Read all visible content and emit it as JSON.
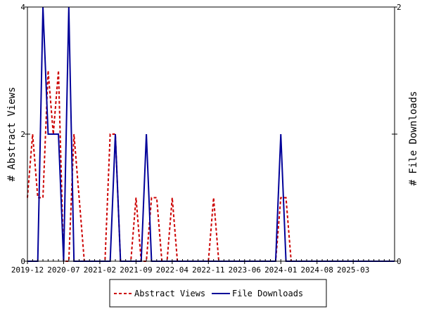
{
  "chart_data": {
    "type": "line",
    "ylabel_left": "# Abstract Views",
    "ylabel_right": "# File Downloads",
    "xlabel": "",
    "x_tick_labels": [
      "2019-12",
      "2020-07",
      "2021-02",
      "2021-09",
      "2022-04",
      "2022-11",
      "2023-06",
      "2024-01",
      "2024-08",
      "2025-03"
    ],
    "x_range": [
      "2019-12",
      "2025-11"
    ],
    "y_left_ticks": [
      "0",
      "2",
      "4"
    ],
    "y_left_range": [
      0,
      4
    ],
    "y_right_ticks": [
      "0",
      "1",
      "2"
    ],
    "y_right_range": [
      0,
      2
    ],
    "grid": false,
    "legend_position": "bottom",
    "months_count": 72,
    "series": [
      {
        "name": "Abstract Views",
        "axis": "left",
        "color": "#cc0000",
        "dash": true,
        "values": [
          1,
          2,
          1,
          1,
          3,
          2,
          3,
          0,
          0,
          2,
          1,
          0,
          0,
          0,
          0,
          0,
          2,
          2,
          0,
          0,
          0,
          1,
          0,
          0,
          1,
          1,
          0,
          0,
          1,
          0,
          0,
          0,
          0,
          0,
          0,
          0,
          1,
          0,
          0,
          0,
          0,
          0,
          0,
          0,
          0,
          0,
          0,
          0,
          0,
          1,
          1,
          0,
          0,
          0,
          0,
          0,
          0,
          0,
          0,
          0,
          0,
          0,
          0,
          0,
          0,
          0,
          0,
          0,
          0,
          0,
          0,
          0
        ]
      },
      {
        "name": "File Downloads",
        "axis": "right",
        "color": "#000099",
        "dash": false,
        "values": [
          0,
          0,
          0,
          2,
          1,
          1,
          1,
          0,
          2,
          0,
          0,
          0,
          0,
          0,
          0,
          0,
          0,
          1,
          0,
          0,
          0,
          0,
          0,
          1,
          0,
          0,
          0,
          0,
          0,
          0,
          0,
          0,
          0,
          0,
          0,
          0,
          0,
          0,
          0,
          0,
          0,
          0,
          0,
          0,
          0,
          0,
          0,
          0,
          0,
          1,
          0,
          0,
          0,
          0,
          0,
          0,
          0,
          0,
          0,
          0,
          0,
          0,
          0,
          0,
          0,
          0,
          0,
          0,
          0,
          0,
          0,
          0
        ]
      }
    ]
  }
}
